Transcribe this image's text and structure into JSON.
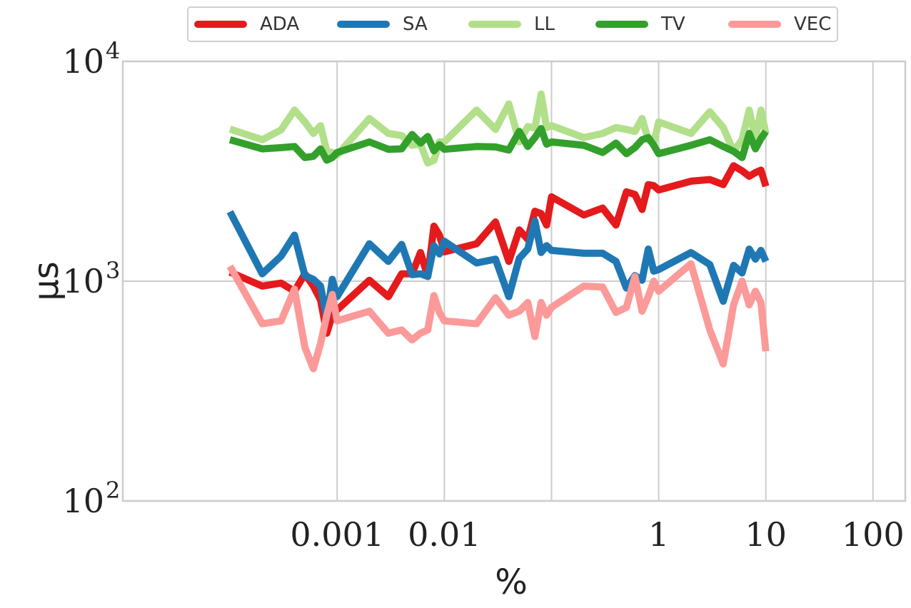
{
  "chart_data": {
    "type": "line",
    "title": "",
    "xlabel": "%",
    "ylabel": "µs",
    "xscale": "log",
    "yscale": "log",
    "xlim": [
      1e-05,
      200
    ],
    "ylim": [
      100,
      10000
    ],
    "xticks": [
      {
        "value": 0.001,
        "label": "0.001"
      },
      {
        "value": 0.01,
        "label": "0.01"
      },
      {
        "value": 1,
        "label": "1"
      },
      {
        "value": 10,
        "label": "10"
      },
      {
        "value": 100,
        "label": "100"
      }
    ],
    "xtick_positions": [
      0.001,
      0.01,
      0.1,
      1,
      10,
      100
    ],
    "yticks": [
      {
        "value": 100,
        "label_base": "10",
        "label_exp": "2"
      },
      {
        "value": 1000,
        "label_base": "10",
        "label_exp": "3"
      },
      {
        "value": 10000,
        "label_base": "10",
        "label_exp": "4"
      }
    ],
    "grid": true,
    "legend": "top-center",
    "series": [
      {
        "name": "ADA",
        "color": "#e41a1c",
        "points": [
          [
            0.0001,
            1100
          ],
          [
            0.0002,
            950
          ],
          [
            0.0003,
            980
          ],
          [
            0.0004,
            900
          ],
          [
            0.0005,
            1080
          ],
          [
            0.0006,
            950
          ],
          [
            0.0007,
            820
          ],
          [
            0.0008,
            580
          ],
          [
            0.0009,
            700
          ],
          [
            0.001,
            740
          ],
          [
            0.002,
            1010
          ],
          [
            0.003,
            850
          ],
          [
            0.004,
            1080
          ],
          [
            0.005,
            1080
          ],
          [
            0.006,
            1350
          ],
          [
            0.007,
            1050
          ],
          [
            0.008,
            1780
          ],
          [
            0.009,
            1620
          ],
          [
            0.01,
            1360
          ],
          [
            0.02,
            1480
          ],
          [
            0.03,
            1860
          ],
          [
            0.04,
            1230
          ],
          [
            0.05,
            1710
          ],
          [
            0.06,
            1550
          ],
          [
            0.07,
            2080
          ],
          [
            0.08,
            2030
          ],
          [
            0.09,
            1800
          ],
          [
            0.1,
            2420
          ],
          [
            0.2,
            2000
          ],
          [
            0.3,
            2150
          ],
          [
            0.4,
            1800
          ],
          [
            0.5,
            2550
          ],
          [
            0.6,
            2480
          ],
          [
            0.7,
            2120
          ],
          [
            0.8,
            2750
          ],
          [
            0.9,
            2720
          ],
          [
            1,
            2600
          ],
          [
            2,
            2850
          ],
          [
            3,
            2900
          ],
          [
            4,
            2750
          ],
          [
            5,
            3350
          ],
          [
            6,
            3180
          ],
          [
            7,
            3000
          ],
          [
            8,
            3120
          ],
          [
            9,
            3200
          ],
          [
            10,
            2700
          ]
        ]
      },
      {
        "name": "SA",
        "color": "#1f78b4",
        "points": [
          [
            0.0001,
            2070
          ],
          [
            0.0002,
            1080
          ],
          [
            0.0003,
            1300
          ],
          [
            0.0004,
            1620
          ],
          [
            0.0005,
            1060
          ],
          [
            0.0006,
            1020
          ],
          [
            0.0007,
            950
          ],
          [
            0.0008,
            680
          ],
          [
            0.0009,
            1020
          ],
          [
            0.001,
            850
          ],
          [
            0.002,
            1480
          ],
          [
            0.003,
            1230
          ],
          [
            0.004,
            1470
          ],
          [
            0.005,
            1070
          ],
          [
            0.006,
            1080
          ],
          [
            0.007,
            1050
          ],
          [
            0.008,
            1450
          ],
          [
            0.009,
            1330
          ],
          [
            0.01,
            1520
          ],
          [
            0.02,
            1210
          ],
          [
            0.03,
            1260
          ],
          [
            0.04,
            850
          ],
          [
            0.05,
            1270
          ],
          [
            0.06,
            1400
          ],
          [
            0.07,
            1880
          ],
          [
            0.08,
            1350
          ],
          [
            0.09,
            1450
          ],
          [
            0.1,
            1380
          ],
          [
            0.2,
            1340
          ],
          [
            0.3,
            1340
          ],
          [
            0.4,
            1230
          ],
          [
            0.5,
            930
          ],
          [
            0.6,
            1060
          ],
          [
            0.7,
            1010
          ],
          [
            0.8,
            1400
          ],
          [
            0.9,
            1110
          ],
          [
            1,
            1130
          ],
          [
            2,
            1350
          ],
          [
            3,
            1190
          ],
          [
            4,
            810
          ],
          [
            5,
            1180
          ],
          [
            6,
            1090
          ],
          [
            7,
            1400
          ],
          [
            8,
            1260
          ],
          [
            9,
            1380
          ],
          [
            10,
            1230
          ]
        ]
      },
      {
        "name": "LL",
        "color": "#b2df8a",
        "points": [
          [
            0.0001,
            4920
          ],
          [
            0.0002,
            4400
          ],
          [
            0.0003,
            4880
          ],
          [
            0.0004,
            6000
          ],
          [
            0.0005,
            5300
          ],
          [
            0.0006,
            4700
          ],
          [
            0.0007,
            5100
          ],
          [
            0.0008,
            3900
          ],
          [
            0.0009,
            3850
          ],
          [
            0.001,
            3750
          ],
          [
            0.002,
            5500
          ],
          [
            0.003,
            4700
          ],
          [
            0.004,
            4600
          ],
          [
            0.005,
            4150
          ],
          [
            0.006,
            4200
          ],
          [
            0.007,
            3450
          ],
          [
            0.008,
            3550
          ],
          [
            0.009,
            4300
          ],
          [
            0.01,
            4300
          ],
          [
            0.02,
            6000
          ],
          [
            0.03,
            4900
          ],
          [
            0.04,
            6400
          ],
          [
            0.05,
            4300
          ],
          [
            0.06,
            5050
          ],
          [
            0.07,
            4970
          ],
          [
            0.08,
            7100
          ],
          [
            0.09,
            5000
          ],
          [
            0.1,
            5100
          ],
          [
            0.2,
            4500
          ],
          [
            0.3,
            4700
          ],
          [
            0.4,
            5000
          ],
          [
            0.5,
            4900
          ],
          [
            0.6,
            4800
          ],
          [
            0.7,
            5500
          ],
          [
            0.8,
            4400
          ],
          [
            0.9,
            4250
          ],
          [
            1,
            5300
          ],
          [
            2,
            4700
          ],
          [
            3,
            5900
          ],
          [
            4,
            5000
          ],
          [
            5,
            3900
          ],
          [
            6,
            4400
          ],
          [
            7,
            6000
          ],
          [
            8,
            4400
          ],
          [
            9,
            6000
          ],
          [
            10,
            4700
          ]
        ]
      },
      {
        "name": "TV",
        "color": "#33a02c",
        "points": [
          [
            0.0001,
            4400
          ],
          [
            0.0002,
            4000
          ],
          [
            0.0003,
            4050
          ],
          [
            0.0004,
            4100
          ],
          [
            0.0005,
            3650
          ],
          [
            0.0006,
            3700
          ],
          [
            0.0007,
            4000
          ],
          [
            0.0008,
            3550
          ],
          [
            0.0009,
            3650
          ],
          [
            0.001,
            3850
          ],
          [
            0.002,
            4300
          ],
          [
            0.003,
            3980
          ],
          [
            0.004,
            4000
          ],
          [
            0.005,
            4650
          ],
          [
            0.006,
            4250
          ],
          [
            0.007,
            4550
          ],
          [
            0.008,
            3920
          ],
          [
            0.009,
            4180
          ],
          [
            0.01,
            3980
          ],
          [
            0.02,
            4100
          ],
          [
            0.03,
            4080
          ],
          [
            0.04,
            3950
          ],
          [
            0.05,
            4800
          ],
          [
            0.06,
            4100
          ],
          [
            0.07,
            4500
          ],
          [
            0.08,
            4950
          ],
          [
            0.09,
            4200
          ],
          [
            0.1,
            4300
          ],
          [
            0.2,
            4150
          ],
          [
            0.3,
            3850
          ],
          [
            0.4,
            4250
          ],
          [
            0.5,
            3800
          ],
          [
            0.6,
            4050
          ],
          [
            0.7,
            4400
          ],
          [
            0.8,
            4500
          ],
          [
            0.9,
            4150
          ],
          [
            1,
            3800
          ],
          [
            2,
            4150
          ],
          [
            3,
            4400
          ],
          [
            4,
            4100
          ],
          [
            5,
            3900
          ],
          [
            6,
            3650
          ],
          [
            7,
            4700
          ],
          [
            8,
            4000
          ],
          [
            9,
            4450
          ],
          [
            10,
            4800
          ]
        ]
      },
      {
        "name": "VEC",
        "color": "#fb9a99",
        "points": [
          [
            0.0001,
            1170
          ],
          [
            0.0002,
            640
          ],
          [
            0.0003,
            660
          ],
          [
            0.0004,
            920
          ],
          [
            0.0005,
            500
          ],
          [
            0.0006,
            400
          ],
          [
            0.0007,
            520
          ],
          [
            0.0008,
            700
          ],
          [
            0.0009,
            870
          ],
          [
            0.001,
            660
          ],
          [
            0.002,
            730
          ],
          [
            0.003,
            580
          ],
          [
            0.004,
            600
          ],
          [
            0.005,
            540
          ],
          [
            0.006,
            580
          ],
          [
            0.007,
            600
          ],
          [
            0.008,
            860
          ],
          [
            0.009,
            720
          ],
          [
            0.01,
            660
          ],
          [
            0.02,
            640
          ],
          [
            0.03,
            840
          ],
          [
            0.04,
            700
          ],
          [
            0.05,
            730
          ],
          [
            0.06,
            800
          ],
          [
            0.07,
            560
          ],
          [
            0.08,
            800
          ],
          [
            0.09,
            700
          ],
          [
            0.1,
            760
          ],
          [
            0.2,
            950
          ],
          [
            0.3,
            940
          ],
          [
            0.4,
            720
          ],
          [
            0.5,
            760
          ],
          [
            0.6,
            1050
          ],
          [
            0.7,
            730
          ],
          [
            0.8,
            850
          ],
          [
            0.9,
            1000
          ],
          [
            1,
            900
          ],
          [
            2,
            1200
          ],
          [
            3,
            600
          ],
          [
            4,
            420
          ],
          [
            5,
            780
          ],
          [
            6,
            1000
          ],
          [
            7,
            780
          ],
          [
            8,
            900
          ],
          [
            9,
            800
          ],
          [
            10,
            480
          ]
        ]
      }
    ]
  }
}
